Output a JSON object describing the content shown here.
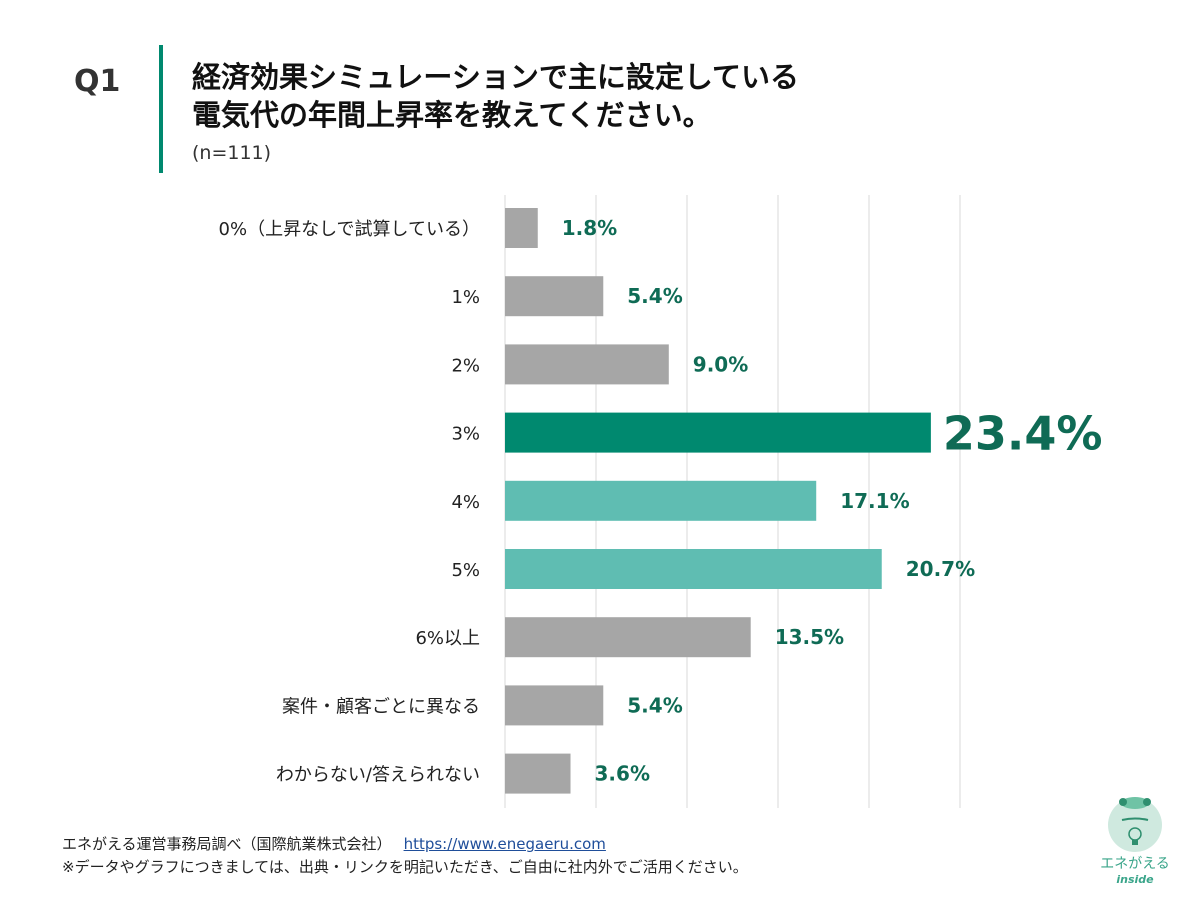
{
  "header": {
    "q_label": "Q1",
    "title_line1": "経済効果シミュレーションで主に設定している",
    "title_line2": "電気代の年間上昇率を教えてください。",
    "sample": "(n=111)"
  },
  "chart_data": {
    "type": "bar",
    "orientation": "horizontal",
    "categories": [
      "0%（上昇なしで試算している）",
      "1%",
      "2%",
      "3%",
      "4%",
      "5%",
      "6%以上",
      "案件・顧客ごとに異なる",
      "わからない/答えられない"
    ],
    "values": [
      1.8,
      5.4,
      9.0,
      23.4,
      17.1,
      20.7,
      13.5,
      5.4,
      3.6
    ],
    "value_labels": [
      "1.8%",
      "5.4%",
      "9.0%",
      "23.4%",
      "17.1%",
      "20.7%",
      "13.5%",
      "5.4%",
      "3.6%"
    ],
    "unit": "%",
    "xlim": [
      0,
      25
    ],
    "grid": true,
    "highlight_index": 3,
    "colors": {
      "default": "#a6a6a6",
      "highlight": "#00896f",
      "secondary": "#5fbdb2",
      "label": "#0f6b55",
      "grid": "#d9d9d9"
    },
    "bar_color_roles": [
      "default",
      "default",
      "default",
      "highlight",
      "secondary",
      "secondary",
      "default",
      "default",
      "default"
    ]
  },
  "footer": {
    "source": "エネがえる運営事務局調べ（国際航業株式会社）",
    "link": "https://www.enegaeru.com",
    "note": "※データやグラフにつきましては、出典・リンクを明記いただき、ご自由に社内外でご活用ください。"
  },
  "logo": {
    "text1": "エネがえる",
    "text2": "inside"
  }
}
